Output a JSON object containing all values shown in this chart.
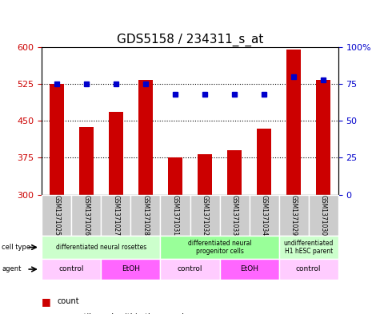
{
  "title": "GDS5158 / 234311_s_at",
  "samples": [
    "GSM1371025",
    "GSM1371026",
    "GSM1371027",
    "GSM1371028",
    "GSM1371031",
    "GSM1371032",
    "GSM1371033",
    "GSM1371034",
    "GSM1371029",
    "GSM1371030"
  ],
  "counts": [
    525,
    437,
    468,
    533,
    375,
    382,
    390,
    435,
    595,
    533
  ],
  "percentiles": [
    75,
    75,
    75,
    75,
    68,
    68,
    68,
    68,
    80,
    78
  ],
  "ymin": 300,
  "ymax": 600,
  "yticks": [
    300,
    375,
    450,
    525,
    600
  ],
  "pct_yticks": [
    0,
    25,
    50,
    75,
    100
  ],
  "bar_color": "#cc0000",
  "dot_color": "#0000cc",
  "cell_type_groups": [
    {
      "label": "differentiated neural rosettes",
      "start": 0,
      "end": 4,
      "color": "#ccffcc"
    },
    {
      "label": "differentiated neural\nprogenitor cells",
      "start": 4,
      "end": 8,
      "color": "#99ff99"
    },
    {
      "label": "undifferentiated\nH1 hESC parent",
      "start": 8,
      "end": 10,
      "color": "#ccffcc"
    }
  ],
  "agent_groups": [
    {
      "label": "control",
      "start": 0,
      "end": 2,
      "color": "#ffccff"
    },
    {
      "label": "EtOH",
      "start": 2,
      "end": 4,
      "color": "#ff66ff"
    },
    {
      "label": "control",
      "start": 4,
      "end": 6,
      "color": "#ffccff"
    },
    {
      "label": "EtOH",
      "start": 6,
      "end": 8,
      "color": "#ff66ff"
    },
    {
      "label": "control",
      "start": 8,
      "end": 10,
      "color": "#ffccff"
    }
  ],
  "legend_count_color": "#cc0000",
  "legend_dot_color": "#0000cc",
  "bg_color": "#ffffff",
  "tick_label_color_left": "#cc0000",
  "tick_label_color_right": "#0000cc",
  "plot_bg": "#ffffff"
}
